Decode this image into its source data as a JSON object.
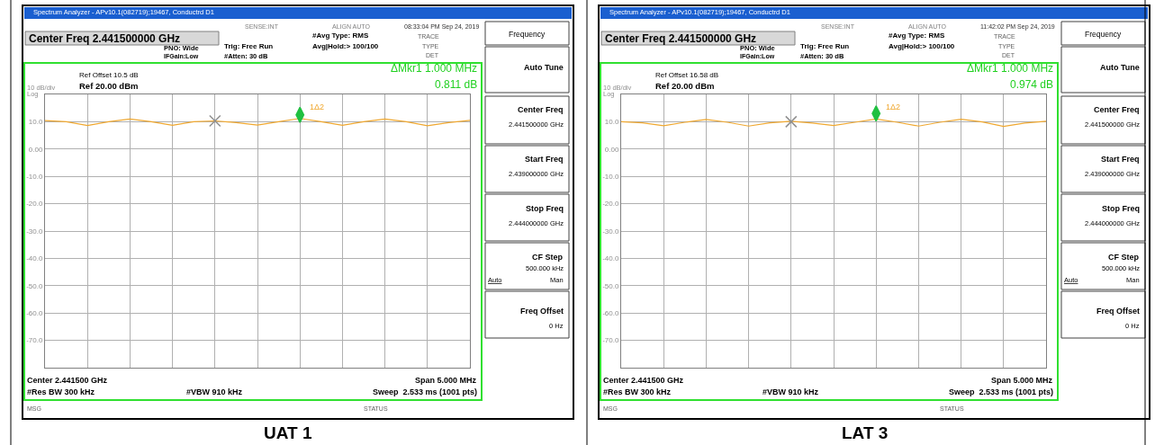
{
  "chart_data": [
    {
      "type": "line",
      "title": "UAT 1",
      "ylim": [
        -80,
        20
      ],
      "categories": [
        null,
        null,
        null,
        null,
        null,
        null,
        null,
        null,
        null,
        null,
        null,
        null,
        null,
        null,
        null,
        null,
        null,
        null,
        null,
        null,
        null
      ],
      "yticks": [
        {
          "value": 10,
          "label": "10.0"
        },
        {
          "value": 0,
          "label": "0.00"
        },
        {
          "value": -10,
          "label": "-10.0"
        },
        {
          "value": -20,
          "label": "-20.0"
        },
        {
          "value": -30,
          "label": "-30.0"
        },
        {
          "value": -40,
          "label": "-40.0"
        },
        {
          "value": -50,
          "label": "-50.0"
        },
        {
          "value": -60,
          "label": "-60.0"
        },
        {
          "value": -70,
          "label": "-70.0"
        }
      ],
      "tick_labels": "y",
      "grid": true,
      "series": [
        {
          "color": "#f0a830",
          "marker": "none",
          "values": [
            10.4,
            10.0,
            8.6,
            10.0,
            11.0,
            10.0,
            8.7,
            10.0,
            10.3,
            9.7,
            8.8,
            10.0,
            11.2,
            10.0,
            8.7,
            10.0,
            11.0,
            10.0,
            8.5,
            9.7,
            10.5
          ]
        },
        {
          "type": "scatter",
          "color": "#20c040",
          "marker": "diamond",
          "values": [
            null,
            null,
            null,
            null,
            null,
            null,
            null,
            null,
            null,
            null,
            null,
            null,
            12.5,
            null,
            null,
            null,
            null,
            null,
            null,
            null,
            null
          ]
        },
        {
          "type": "scatter",
          "color": "#909090",
          "marker": "cross",
          "values": [
            null,
            null,
            null,
            null,
            null,
            null,
            null,
            null,
            10.3,
            null,
            null,
            null,
            null,
            null,
            null,
            null,
            null,
            null,
            null,
            null,
            null
          ]
        }
      ],
      "annotations": [
        "Spectrum Analyzer - APv10.1(082719);19467, Conductrd D1",
        "SENSE:INT",
        "ALIGN AUTO",
        "08:33:04 PM Sep 24, 2019",
        "Center Freq 2.441500000 GHz",
        "PNO: Wide",
        "IFGain:Low",
        "Trig: Free Run",
        "#Atten: 30 dB",
        "#Avg Type: RMS",
        "Avg|Hold:> 100/100",
        "TRACE",
        "TYPE",
        "DET",
        "Ref Offset 10.5 dB",
        "Ref 20.00 dBm",
        "10 dB/div",
        "Log",
        "ΔMkr1 1.000 MHz",
        "0.811 dB",
        "Center 2.441500 GHz",
        "#Res BW 300 kHz",
        "#VBW 910 kHz",
        "Span 5.000 MHz",
        "Sweep  2.533 ms (1001 pts)",
        "MSG",
        "STATUS",
        "Frequency",
        "Auto Tune",
        "Center Freq",
        "2.441500000 GHz",
        "Start Freq",
        "2.439000000 GHz",
        "Stop Freq",
        "2.444000000 GHz",
        "CF Step",
        "500.000 kHz",
        "Auto",
        "Man",
        "Freq Offset",
        "0 Hz",
        "1Δ2"
      ]
    },
    {
      "type": "line",
      "title": "LAT 3",
      "ylim": [
        -80,
        20
      ],
      "categories": [
        null,
        null,
        null,
        null,
        null,
        null,
        null,
        null,
        null,
        null,
        null,
        null,
        null,
        null,
        null,
        null,
        null,
        null,
        null,
        null,
        null
      ],
      "yticks": [
        {
          "value": 10,
          "label": "10.0"
        },
        {
          "value": 0,
          "label": "0.00"
        },
        {
          "value": -10,
          "label": "-10.0"
        },
        {
          "value": -20,
          "label": "-20.0"
        },
        {
          "value": -30,
          "label": "-30.0"
        },
        {
          "value": -40,
          "label": "-40.0"
        },
        {
          "value": -50,
          "label": "-50.0"
        },
        {
          "value": -60,
          "label": "-60.0"
        },
        {
          "value": -70,
          "label": "-70.0"
        }
      ],
      "tick_labels": "y",
      "grid": true,
      "series": [
        {
          "color": "#f0a830",
          "marker": "none",
          "values": [
            10.0,
            9.6,
            8.5,
            9.8,
            10.8,
            9.8,
            8.4,
            9.6,
            10.2,
            9.5,
            8.6,
            9.8,
            11.0,
            9.8,
            8.4,
            9.8,
            10.9,
            9.9,
            8.3,
            9.5,
            10.2
          ]
        },
        {
          "type": "scatter",
          "color": "#20c040",
          "marker": "diamond",
          "values": [
            null,
            null,
            null,
            null,
            null,
            null,
            null,
            null,
            null,
            null,
            null,
            null,
            13.0,
            null,
            null,
            null,
            null,
            null,
            null,
            null,
            null
          ]
        },
        {
          "type": "scatter",
          "color": "#909090",
          "marker": "cross",
          "values": [
            null,
            null,
            null,
            null,
            null,
            null,
            null,
            null,
            10.0,
            null,
            null,
            null,
            null,
            null,
            null,
            null,
            null,
            null,
            null,
            null,
            null
          ]
        }
      ],
      "annotations": [
        "Spectrum Analyzer - APv10.1(082719);19467, Conductrd D1",
        "SENSE:INT",
        "ALIGN AUTO",
        "11:42:02 PM Sep 24, 2019",
        "Center Freq 2.441500000 GHz",
        "PNO: Wide",
        "IFGain:Low",
        "Trig: Free Run",
        "#Atten: 30 dB",
        "#Avg Type: RMS",
        "Avg|Hold:> 100/100",
        "TRACE",
        "TYPE",
        "DET",
        "Ref Offset 16.58 dB",
        "Ref 20.00 dBm",
        "10 dB/div",
        "Log",
        "ΔMkr1 1.000 MHz",
        "0.974 dB",
        "Center 2.441500 GHz",
        "#Res BW 300 kHz",
        "#VBW 910 kHz",
        "Span 5.000 MHz",
        "Sweep  2.533 ms (1001 pts)",
        "MSG",
        "STATUS",
        "Frequency",
        "Auto Tune",
        "Center Freq",
        "2.441500000 GHz",
        "Start Freq",
        "2.439000000 GHz",
        "Stop Freq",
        "2.444000000 GHz",
        "CF Step",
        "500.000 kHz",
        "Auto",
        "Man",
        "Freq Offset",
        "0 Hz",
        "1Δ2"
      ]
    }
  ]
}
